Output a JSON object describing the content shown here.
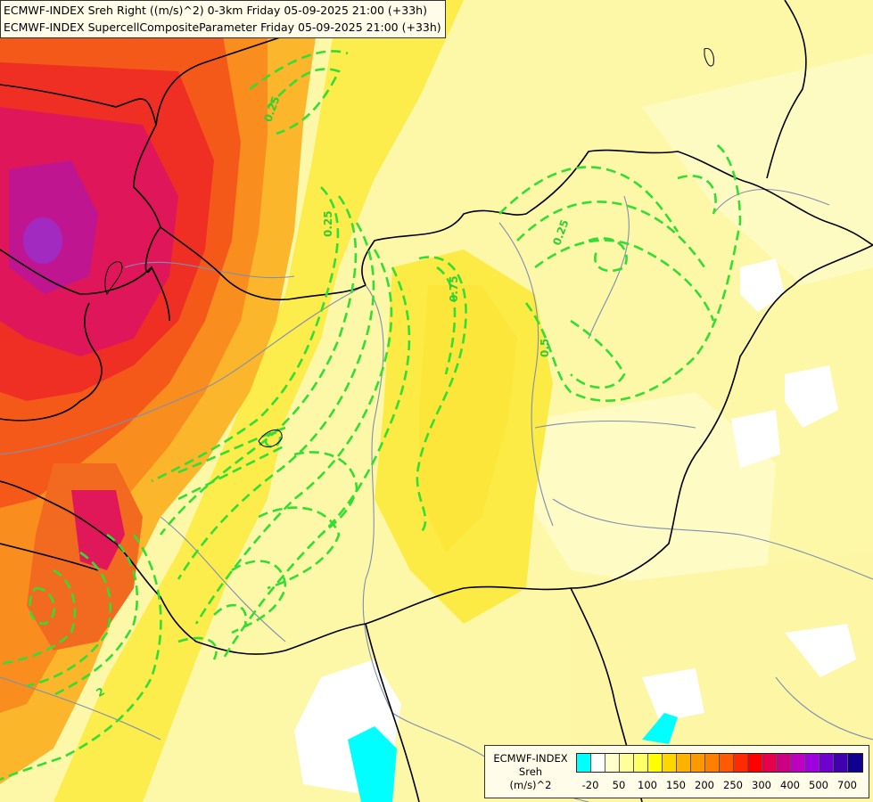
{
  "title": {
    "line1": "ECMWF-INDEX Sreh Right ((m/s)^2) 0-3km Friday 05-09-2025 21:00 (+33h)",
    "line2": "ECMWF-INDEX SupercellCompositeParameter Friday 05-09-2025 21:00 (+33h)"
  },
  "contour_labels": [
    "0.25",
    "0.25",
    "0.75",
    "0.25",
    "0.5",
    "2"
  ],
  "legend": {
    "line1": "ECMWF-INDEX",
    "line2": "Sreh",
    "line3": "(m/s)^2",
    "colors": [
      "#00ffff",
      "#ffffff",
      "#ffffcc",
      "#ffff99",
      "#ffff66",
      "#ffff00",
      "#ffd700",
      "#ffb300",
      "#ff9900",
      "#ff7f00",
      "#ff5a00",
      "#ff2a00",
      "#ff0000",
      "#e6004c",
      "#cc0080",
      "#c000c0",
      "#a000e0",
      "#7000d0",
      "#4000b0",
      "#100090"
    ],
    "ticks": [
      "-20",
      "50",
      "100",
      "150",
      "200",
      "250",
      "300",
      "400",
      "500",
      "700"
    ]
  },
  "styles": {
    "contour_color": "#33dd33",
    "border_color": "#000000",
    "river_color": "#7f8fb0"
  }
}
